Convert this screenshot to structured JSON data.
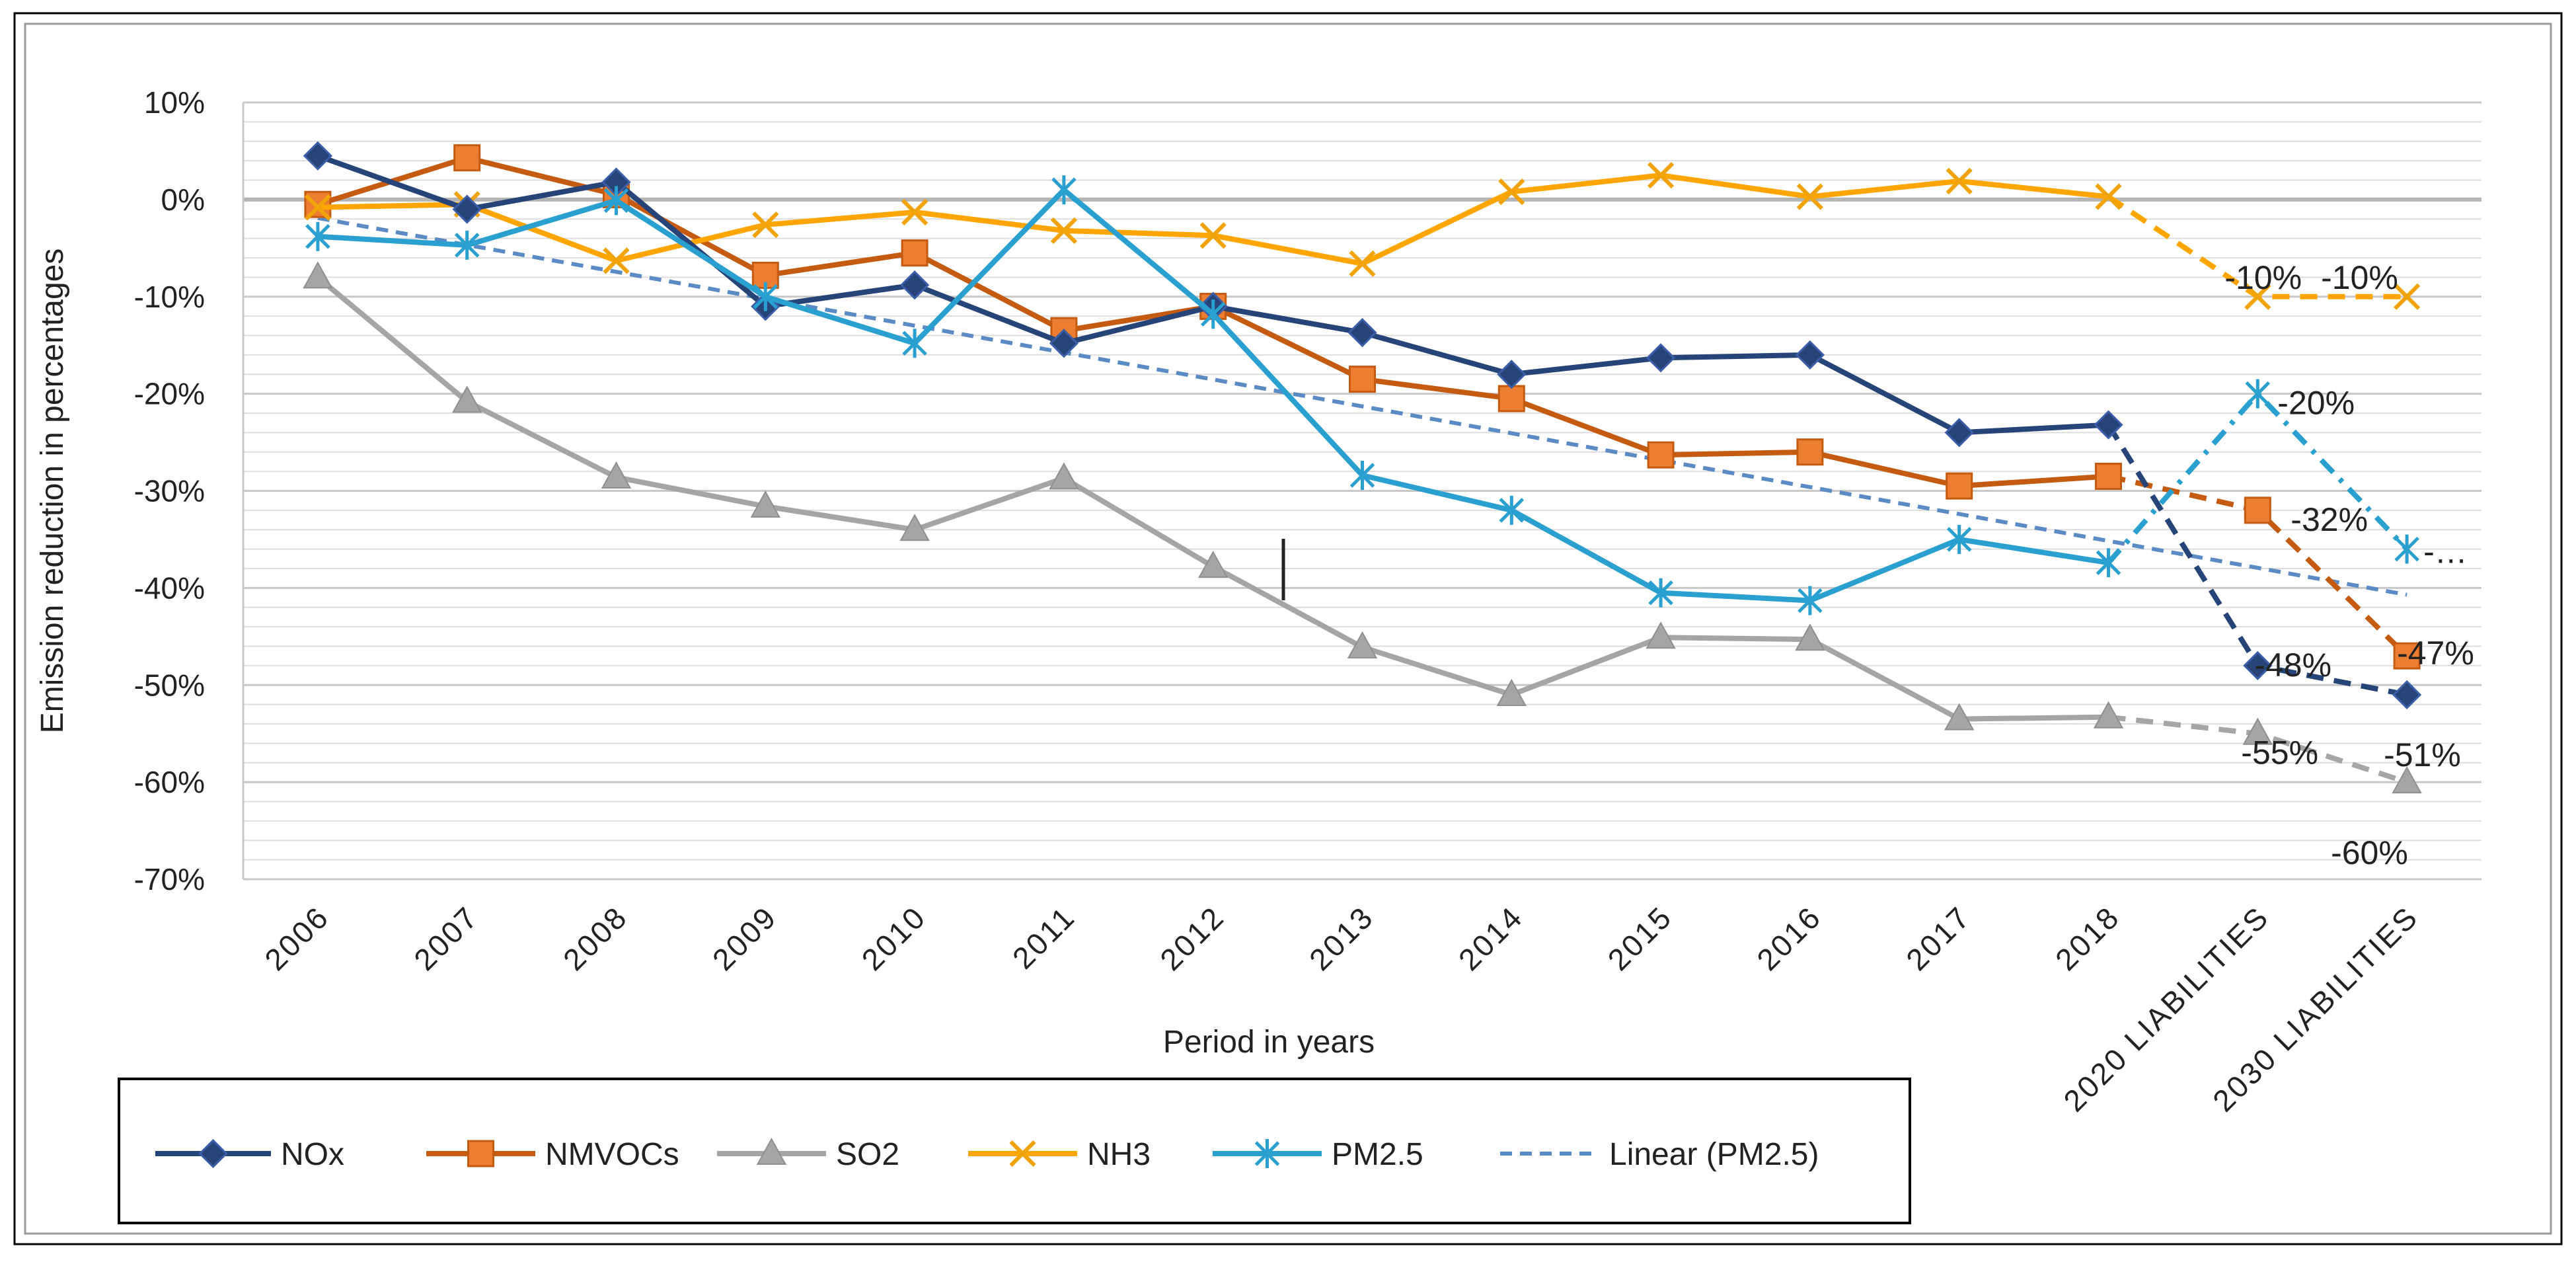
{
  "chart_data": {
    "type": "line",
    "title": "",
    "xlabel": "Period in years",
    "ylabel": "Emission reduction in percentages",
    "ylim": [
      -70,
      10
    ],
    "y_major_step": 10,
    "y_minor_step": 2,
    "y_tick_labels": [
      "10%",
      "0%",
      "-10%",
      "-20%",
      "-30%",
      "-40%",
      "-50%",
      "-60%",
      "-70%"
    ],
    "categories": [
      "2006",
      "2007",
      "2008",
      "2009",
      "2010",
      "2011",
      "2012",
      "2013",
      "2014",
      "2015",
      "2016",
      "2017",
      "2018",
      "2020 LIABILITIES",
      "2030 LIABILITIES"
    ],
    "projection_start_index": 12,
    "legend_position": "bottom-left",
    "series": [
      {
        "name": "NOx",
        "color": "#264478",
        "marker": "diamond",
        "values": [
          4.5,
          -1.0,
          1.8,
          -11.0,
          -8.8,
          -14.8,
          -11.0,
          -13.7,
          -18.0,
          -16.3,
          -16.0,
          -24.0,
          -23.2,
          -48,
          -51
        ],
        "labels": {
          "13": "-48%",
          "14": "-51%"
        }
      },
      {
        "name": "NMVOCs",
        "color": "#C55A11",
        "marker_fill": "#ED7D31",
        "marker": "square",
        "values": [
          -0.5,
          4.3,
          0.5,
          -7.8,
          -5.5,
          -13.5,
          -11.0,
          -18.5,
          -20.5,
          -26.3,
          -26.0,
          -29.5,
          -28.5,
          -32,
          -47
        ],
        "labels": {
          "13": "-32%",
          "14": "-47%"
        }
      },
      {
        "name": "SO2",
        "color": "#A5A5A5",
        "marker": "triangle",
        "values": [
          -8.0,
          -20.8,
          -28.6,
          -31.6,
          -34.0,
          -28.7,
          -37.8,
          -46.1,
          -51.0,
          -45.1,
          -45.3,
          -53.5,
          -53.3,
          -55,
          -60
        ],
        "labels": {
          "13": "-55%",
          "14": "-60%"
        }
      },
      {
        "name": "NH3",
        "color": "#FFA500",
        "marker_fill": "#F0A30A",
        "marker": "x",
        "values": [
          -0.8,
          -0.5,
          -6.3,
          -2.6,
          -1.3,
          -3.2,
          -3.7,
          -6.6,
          0.8,
          2.5,
          0.3,
          1.9,
          0.3,
          -10,
          -10
        ],
        "labels": {
          "13": "-10%",
          "14": "-10%"
        }
      },
      {
        "name": "PM2.5",
        "color": "#2AA0D0",
        "marker": "star",
        "values": [
          -3.8,
          -4.7,
          -0.1,
          -10.0,
          -14.8,
          1.0,
          -11.8,
          -28.4,
          -32.0,
          -40.5,
          -41.3,
          -35.0,
          -37.4,
          -20,
          -36
        ],
        "labels": {
          "13": "-20%",
          "14": "-…"
        }
      }
    ],
    "trendline": {
      "name": "Linear (PM2.5)",
      "color": "#5B8BC5",
      "start": -1.9,
      "end": -40.7
    }
  }
}
